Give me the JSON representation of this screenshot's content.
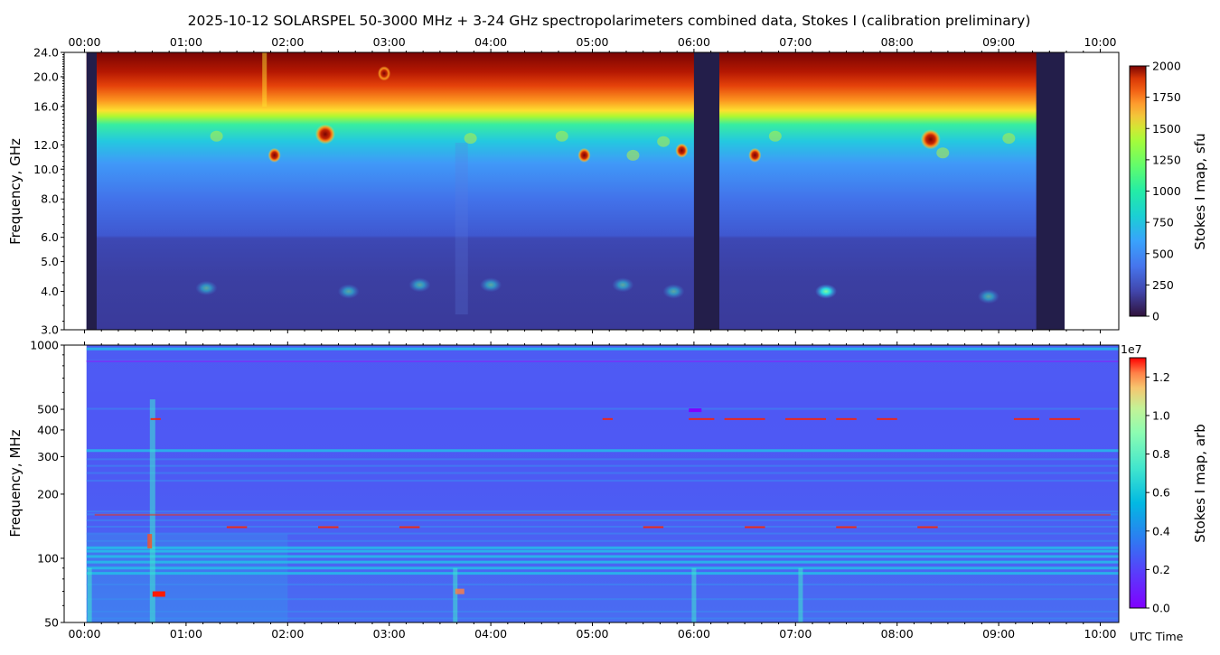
{
  "title": "2025-10-12  SOLARSPEL  50-3000 MHz  +  3-24 GHz  spectropolarimeters combined data,  Stokes I  (calibration preliminary)",
  "time_axis_label": "UTC Time",
  "colors": {
    "jet": [
      "#7f0000",
      "#ff0000",
      "#ff8000",
      "#ffff00",
      "#80ff80",
      "#00ffff",
      "#0080ff",
      "#0000ff",
      "#00008f"
    ],
    "gap": "#231e4a",
    "panel2_base": "#4f5cf2"
  },
  "chart_data": [
    {
      "type": "heatmap",
      "name": "upper-spectrogram",
      "ylabel": "Frequency, GHz",
      "y_scale": "log",
      "ylim": [
        3.0,
        24.0
      ],
      "y_ticks": [
        3.0,
        4.0,
        5.0,
        6.0,
        8.0,
        10.0,
        12.0,
        16.0,
        20.0,
        24.0
      ],
      "y_tick_labels": [
        "3.0",
        "4.0",
        "5.0",
        "6.0",
        "8.0",
        "10.0",
        "12.0",
        "16.0",
        "20.0",
        "24.0"
      ],
      "x_range_hours": [
        0.0,
        10.1
      ],
      "x_ticks": [
        "00:00",
        "01:00",
        "02:00",
        "03:00",
        "04:00",
        "05:00",
        "06:00",
        "07:00",
        "08:00",
        "09:00",
        "10:00"
      ],
      "x_tick_position": "top",
      "data_extent_hours": [
        0.02,
        9.65
      ],
      "data_gaps_hours": [
        [
          0.02,
          0.12
        ],
        [
          6.0,
          6.25
        ],
        [
          9.37,
          9.65
        ]
      ],
      "colorbar": {
        "label": "Stokes I map, sfu",
        "colormap": "turbo",
        "range": [
          0,
          2000
        ],
        "ticks": [
          "0",
          "250",
          "500",
          "750",
          "1000",
          "1250",
          "1500",
          "1750",
          "2000"
        ]
      },
      "bright_spots": [
        {
          "t_hours": 1.87,
          "freq_ghz": 11.1
        },
        {
          "t_hours": 2.37,
          "freq_ghz": 13.0
        },
        {
          "t_hours": 2.95,
          "freq_ghz": 20.5
        },
        {
          "t_hours": 4.92,
          "freq_ghz": 11.1
        },
        {
          "t_hours": 5.88,
          "freq_ghz": 11.5
        },
        {
          "t_hours": 6.6,
          "freq_ghz": 11.1
        },
        {
          "t_hours": 8.33,
          "freq_ghz": 12.5
        }
      ],
      "low_band_spots": [
        {
          "t_hours": 7.3,
          "freq_ghz": 4.0
        },
        {
          "t_hours": 8.9,
          "freq_ghz": 3.85
        },
        {
          "t_hours": 3.3,
          "freq_ghz": 4.2
        },
        {
          "t_hours": 4.0,
          "freq_ghz": 4.2
        },
        {
          "t_hours": 5.8,
          "freq_ghz": 4.0
        },
        {
          "t_hours": 1.2,
          "freq_ghz": 4.1
        },
        {
          "t_hours": 2.6,
          "freq_ghz": 4.0
        },
        {
          "t_hours": 5.3,
          "freq_ghz": 4.2
        }
      ]
    },
    {
      "type": "heatmap",
      "name": "lower-spectrogram",
      "ylabel": "Frequency, MHz",
      "y_scale": "log",
      "ylim": [
        50,
        1000
      ],
      "y_ticks": [
        50,
        100,
        200,
        300,
        400,
        500,
        1000
      ],
      "y_tick_labels": [
        "50",
        "100",
        "200",
        "300",
        "400",
        "500",
        "1000"
      ],
      "x_range_hours": [
        0.0,
        10.1
      ],
      "x_ticks": [
        "00:00",
        "01:00",
        "02:00",
        "03:00",
        "04:00",
        "05:00",
        "06:00",
        "07:00",
        "08:00",
        "09:00",
        "10:00"
      ],
      "x_tick_position": "bottom",
      "data_extent_hours": [
        0.02,
        10.1
      ],
      "colorbar": {
        "label": "Stokes I map, arb",
        "colormap": "rainbow",
        "range": [
          0.0,
          1.3
        ],
        "scale_label": "1e7",
        "ticks": [
          "0.0",
          "0.2",
          "0.4",
          "0.6",
          "0.8",
          "1.0",
          "1.2"
        ]
      },
      "bright_bands_mhz": [
        960,
        840,
        500,
        320,
        290,
        270,
        250,
        230,
        165,
        160,
        150,
        140,
        130,
        120,
        112,
        108,
        102,
        96,
        90,
        85,
        75,
        64,
        56,
        52
      ],
      "interference_lines_mhz": [
        450,
        160,
        150,
        140,
        135
      ],
      "burst_hours": [
        0.67,
        0.05,
        3.65,
        6.0,
        7.05
      ]
    }
  ]
}
